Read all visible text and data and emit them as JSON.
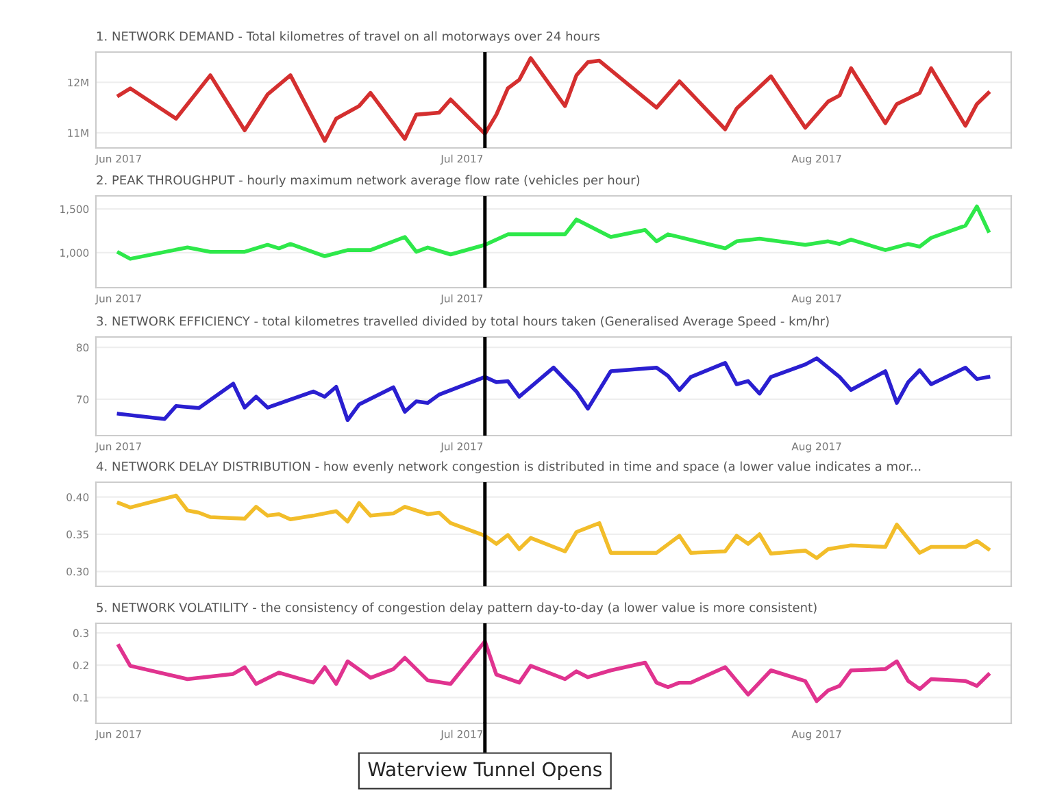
{
  "chart_data": [
    {
      "type": "line",
      "title": "1. NETWORK DEMAND - Total kilometres of travel on all motorways over 24 hours",
      "x": [
        "2017-06-01",
        "2017-06-02",
        "2017-06-06",
        "2017-06-09",
        "2017-06-12",
        "2017-06-14",
        "2017-06-16",
        "2017-06-19",
        "2017-06-20",
        "2017-06-22",
        "2017-06-23",
        "2017-06-26",
        "2017-06-27",
        "2017-06-29",
        "2017-06-30",
        "2017-07-03",
        "2017-07-04",
        "2017-07-05",
        "2017-07-06",
        "2017-07-07",
        "2017-07-10",
        "2017-07-11",
        "2017-07-12",
        "2017-07-13",
        "2017-07-18",
        "2017-07-20",
        "2017-07-24",
        "2017-07-25",
        "2017-07-28",
        "2017-07-31",
        "2017-08-02",
        "2017-08-03",
        "2017-08-04",
        "2017-08-07",
        "2017-08-08",
        "2017-08-10",
        "2017-08-11",
        "2017-08-14",
        "2017-08-15",
        "2017-08-16"
      ],
      "series": [
        {
          "color": "#d42f2f",
          "values": [
            11740000,
            11880000,
            11280000,
            12140000,
            11050000,
            11760000,
            12140000,
            10840000,
            11280000,
            11530000,
            11790000,
            10880000,
            11360000,
            11400000,
            11660000,
            10980000,
            11360000,
            11880000,
            12050000,
            12480000,
            11530000,
            12140000,
            12400000,
            12430000,
            11500000,
            12020000,
            11070000,
            11480000,
            12120000,
            11100000,
            11620000,
            11740000,
            12280000,
            11190000,
            11570000,
            11790000,
            12280000,
            11140000,
            11570000,
            11790000
          ]
        }
      ],
      "xlim": [
        "2017-05-30",
        "2017-08-18"
      ],
      "ylim": [
        10700000,
        12600000
      ],
      "xticks": [
        {
          "value": "2017-06-01",
          "label": "Jun 2017"
        },
        {
          "value": "2017-07-01",
          "label": "Jul 2017"
        },
        {
          "value": "2017-08-01",
          "label": "Aug 2017"
        }
      ],
      "yticks": [
        {
          "value": 11000000,
          "label": "11M"
        },
        {
          "value": 12000000,
          "label": "12M"
        }
      ],
      "grid": "y",
      "ref_lines": [
        {
          "axis": "x",
          "value": "2017-07-03"
        }
      ]
    },
    {
      "type": "line",
      "title": "2. PEAK THROUGHPUT - hourly maximum network average flow rate (vehicles per hour)",
      "x": [
        "2017-06-01",
        "2017-06-02",
        "2017-06-07",
        "2017-06-09",
        "2017-06-12",
        "2017-06-14",
        "2017-06-15",
        "2017-06-16",
        "2017-06-19",
        "2017-06-21",
        "2017-06-23",
        "2017-06-26",
        "2017-06-27",
        "2017-06-28",
        "2017-06-30",
        "2017-07-03",
        "2017-07-05",
        "2017-07-10",
        "2017-07-11",
        "2017-07-14",
        "2017-07-17",
        "2017-07-18",
        "2017-07-19",
        "2017-07-24",
        "2017-07-25",
        "2017-07-27",
        "2017-07-31",
        "2017-08-02",
        "2017-08-03",
        "2017-08-04",
        "2017-08-07",
        "2017-08-09",
        "2017-08-10",
        "2017-08-11",
        "2017-08-14",
        "2017-08-15",
        "2017-08-16"
      ],
      "series": [
        {
          "color": "#2ee84a",
          "values": [
            1000,
            930,
            1060,
            1010,
            1010,
            1090,
            1050,
            1100,
            960,
            1030,
            1030,
            1180,
            1010,
            1060,
            980,
            1090,
            1210,
            1210,
            1380,
            1180,
            1260,
            1130,
            1210,
            1050,
            1130,
            1160,
            1090,
            1130,
            1100,
            1150,
            1030,
            1100,
            1070,
            1170,
            1310,
            1530,
            1250
          ]
        }
      ],
      "xlim": [
        "2017-05-30",
        "2017-08-18"
      ],
      "ylim": [
        600,
        1650
      ],
      "xticks": [
        {
          "value": "2017-06-01",
          "label": "Jun 2017"
        },
        {
          "value": "2017-07-01",
          "label": "Jul 2017"
        },
        {
          "value": "2017-08-01",
          "label": "Aug 2017"
        }
      ],
      "yticks": [
        {
          "value": 1000,
          "label": "1,000"
        },
        {
          "value": 1500,
          "label": "1,500"
        }
      ],
      "grid": "y",
      "ref_lines": [
        {
          "axis": "x",
          "value": "2017-07-03"
        }
      ]
    },
    {
      "type": "line",
      "title": "3. NETWORK EFFICIENCY - total kilometres travelled divided by total hours taken (Generalised Average Speed - km/hr)",
      "x": [
        "2017-06-01",
        "2017-06-05",
        "2017-06-06",
        "2017-06-08",
        "2017-06-11",
        "2017-06-12",
        "2017-06-13",
        "2017-06-14",
        "2017-06-18",
        "2017-06-19",
        "2017-06-20",
        "2017-06-21",
        "2017-06-22",
        "2017-06-25",
        "2017-06-26",
        "2017-06-27",
        "2017-06-28",
        "2017-06-29",
        "2017-07-03",
        "2017-07-04",
        "2017-07-05",
        "2017-07-06",
        "2017-07-09",
        "2017-07-11",
        "2017-07-12",
        "2017-07-14",
        "2017-07-18",
        "2017-07-19",
        "2017-07-20",
        "2017-07-21",
        "2017-07-24",
        "2017-07-25",
        "2017-07-26",
        "2017-07-27",
        "2017-07-28",
        "2017-07-31",
        "2017-08-01",
        "2017-08-03",
        "2017-08-04",
        "2017-08-07",
        "2017-08-08",
        "2017-08-09",
        "2017-08-10",
        "2017-08-11",
        "2017-08-14",
        "2017-08-15",
        "2017-08-16"
      ],
      "series": [
        {
          "color": "#2a1fd0",
          "values": [
            67.2,
            66.2,
            68.7,
            68.3,
            73.0,
            68.4,
            70.5,
            68.4,
            71.5,
            70.5,
            72.4,
            66.0,
            69.0,
            72.3,
            67.6,
            69.6,
            69.3,
            70.9,
            74.3,
            73.3,
            73.5,
            70.5,
            76.1,
            71.5,
            68.2,
            75.4,
            76.1,
            74.5,
            71.8,
            74.3,
            77.0,
            72.9,
            73.5,
            71.1,
            74.3,
            76.7,
            77.9,
            74.3,
            71.8,
            75.4,
            69.3,
            73.3,
            75.6,
            72.9,
            76.1,
            73.9,
            74.3
          ]
        }
      ],
      "xlim": [
        "2017-05-30",
        "2017-08-18"
      ],
      "ylim": [
        63,
        82
      ],
      "xticks": [
        {
          "value": "2017-06-01",
          "label": "Jun 2017"
        },
        {
          "value": "2017-07-01",
          "label": "Jul 2017"
        },
        {
          "value": "2017-08-01",
          "label": "Aug 2017"
        }
      ],
      "yticks": [
        70,
        80
      ],
      "grid": "y",
      "ref_lines": [
        {
          "axis": "x",
          "value": "2017-07-03"
        }
      ]
    },
    {
      "type": "line",
      "title": "4. NETWORK DELAY DISTRIBUTION - how evenly network congestion is distributed in time and space (a lower value indicates a mor...",
      "x": [
        "2017-06-01",
        "2017-06-02",
        "2017-06-06",
        "2017-06-07",
        "2017-06-08",
        "2017-06-09",
        "2017-06-12",
        "2017-06-13",
        "2017-06-14",
        "2017-06-15",
        "2017-06-16",
        "2017-06-18",
        "2017-06-20",
        "2017-06-21",
        "2017-06-22",
        "2017-06-23",
        "2017-06-25",
        "2017-06-26",
        "2017-06-28",
        "2017-06-29",
        "2017-06-30",
        "2017-07-03",
        "2017-07-04",
        "2017-07-05",
        "2017-07-06",
        "2017-07-07",
        "2017-07-10",
        "2017-07-11",
        "2017-07-13",
        "2017-07-14",
        "2017-07-18",
        "2017-07-20",
        "2017-07-21",
        "2017-07-24",
        "2017-07-25",
        "2017-07-26",
        "2017-07-27",
        "2017-07-28",
        "2017-07-31",
        "2017-08-01",
        "2017-08-02",
        "2017-08-04",
        "2017-08-07",
        "2017-08-08",
        "2017-08-10",
        "2017-08-11",
        "2017-08-14",
        "2017-08-15",
        "2017-08-16"
      ],
      "series": [
        {
          "color": "#f2bd2a",
          "values": [
            0.392,
            0.386,
            0.402,
            0.382,
            0.379,
            0.373,
            0.371,
            0.387,
            0.375,
            0.377,
            0.37,
            0.375,
            0.381,
            0.367,
            0.392,
            0.375,
            0.378,
            0.387,
            0.377,
            0.379,
            0.365,
            0.348,
            0.337,
            0.349,
            0.33,
            0.345,
            0.327,
            0.353,
            0.365,
            0.325,
            0.325,
            0.348,
            0.325,
            0.327,
            0.348,
            0.337,
            0.35,
            0.324,
            0.328,
            0.318,
            0.33,
            0.335,
            0.333,
            0.363,
            0.325,
            0.333,
            0.333,
            0.341,
            0.33
          ]
        }
      ],
      "xlim": [
        "2017-05-30",
        "2017-08-18"
      ],
      "ylim": [
        0.28,
        0.42
      ],
      "yticks": [
        {
          "value": 0.3,
          "label": "0.30"
        },
        {
          "value": 0.35,
          "label": "0.35"
        },
        {
          "value": 0.4,
          "label": "0.40"
        }
      ],
      "tick_labels": "y",
      "grid": "y",
      "ref_lines": [
        {
          "axis": "x",
          "value": "2017-07-03"
        }
      ]
    },
    {
      "type": "line",
      "title": "5. NETWORK VOLATILITY - the consistency of congestion delay pattern day-to-day (a lower value is more consistent)",
      "x": [
        "2017-06-01",
        "2017-06-02",
        "2017-06-07",
        "2017-06-11",
        "2017-06-12",
        "2017-06-13",
        "2017-06-15",
        "2017-06-18",
        "2017-06-19",
        "2017-06-20",
        "2017-06-21",
        "2017-06-23",
        "2017-06-25",
        "2017-06-26",
        "2017-06-28",
        "2017-06-30",
        "2017-07-03",
        "2017-07-04",
        "2017-07-06",
        "2017-07-07",
        "2017-07-10",
        "2017-07-11",
        "2017-07-12",
        "2017-07-14",
        "2017-07-17",
        "2017-07-18",
        "2017-07-19",
        "2017-07-20",
        "2017-07-21",
        "2017-07-24",
        "2017-07-26",
        "2017-07-28",
        "2017-07-31",
        "2017-08-01",
        "2017-08-02",
        "2017-08-03",
        "2017-08-04",
        "2017-08-07",
        "2017-08-08",
        "2017-08-09",
        "2017-08-10",
        "2017-08-11",
        "2017-08-14",
        "2017-08-15",
        "2017-08-16"
      ],
      "series": [
        {
          "color": "#e0338f",
          "values": [
            0.26,
            0.198,
            0.157,
            0.173,
            0.194,
            0.142,
            0.177,
            0.146,
            0.194,
            0.142,
            0.212,
            0.161,
            0.188,
            0.223,
            0.153,
            0.142,
            0.274,
            0.171,
            0.146,
            0.198,
            0.157,
            0.181,
            0.163,
            0.184,
            0.208,
            0.146,
            0.132,
            0.146,
            0.146,
            0.194,
            0.109,
            0.184,
            0.151,
            0.089,
            0.122,
            0.136,
            0.184,
            0.188,
            0.212,
            0.151,
            0.126,
            0.157,
            0.151,
            0.136,
            0.171
          ]
        }
      ],
      "xlim": [
        "2017-05-30",
        "2017-08-18"
      ],
      "ylim": [
        0.02,
        0.33
      ],
      "xticks": [
        {
          "value": "2017-06-01",
          "label": "Jun 2017"
        },
        {
          "value": "2017-07-01",
          "label": "Jul 2017"
        },
        {
          "value": "2017-08-01",
          "label": "Aug 2017"
        }
      ],
      "yticks": [
        0.1,
        0.2,
        0.3
      ],
      "grid": "y",
      "ref_lines": [
        {
          "axis": "x",
          "value": "2017-07-03",
          "label": "Waterview Tunnel Opens"
        }
      ]
    }
  ]
}
